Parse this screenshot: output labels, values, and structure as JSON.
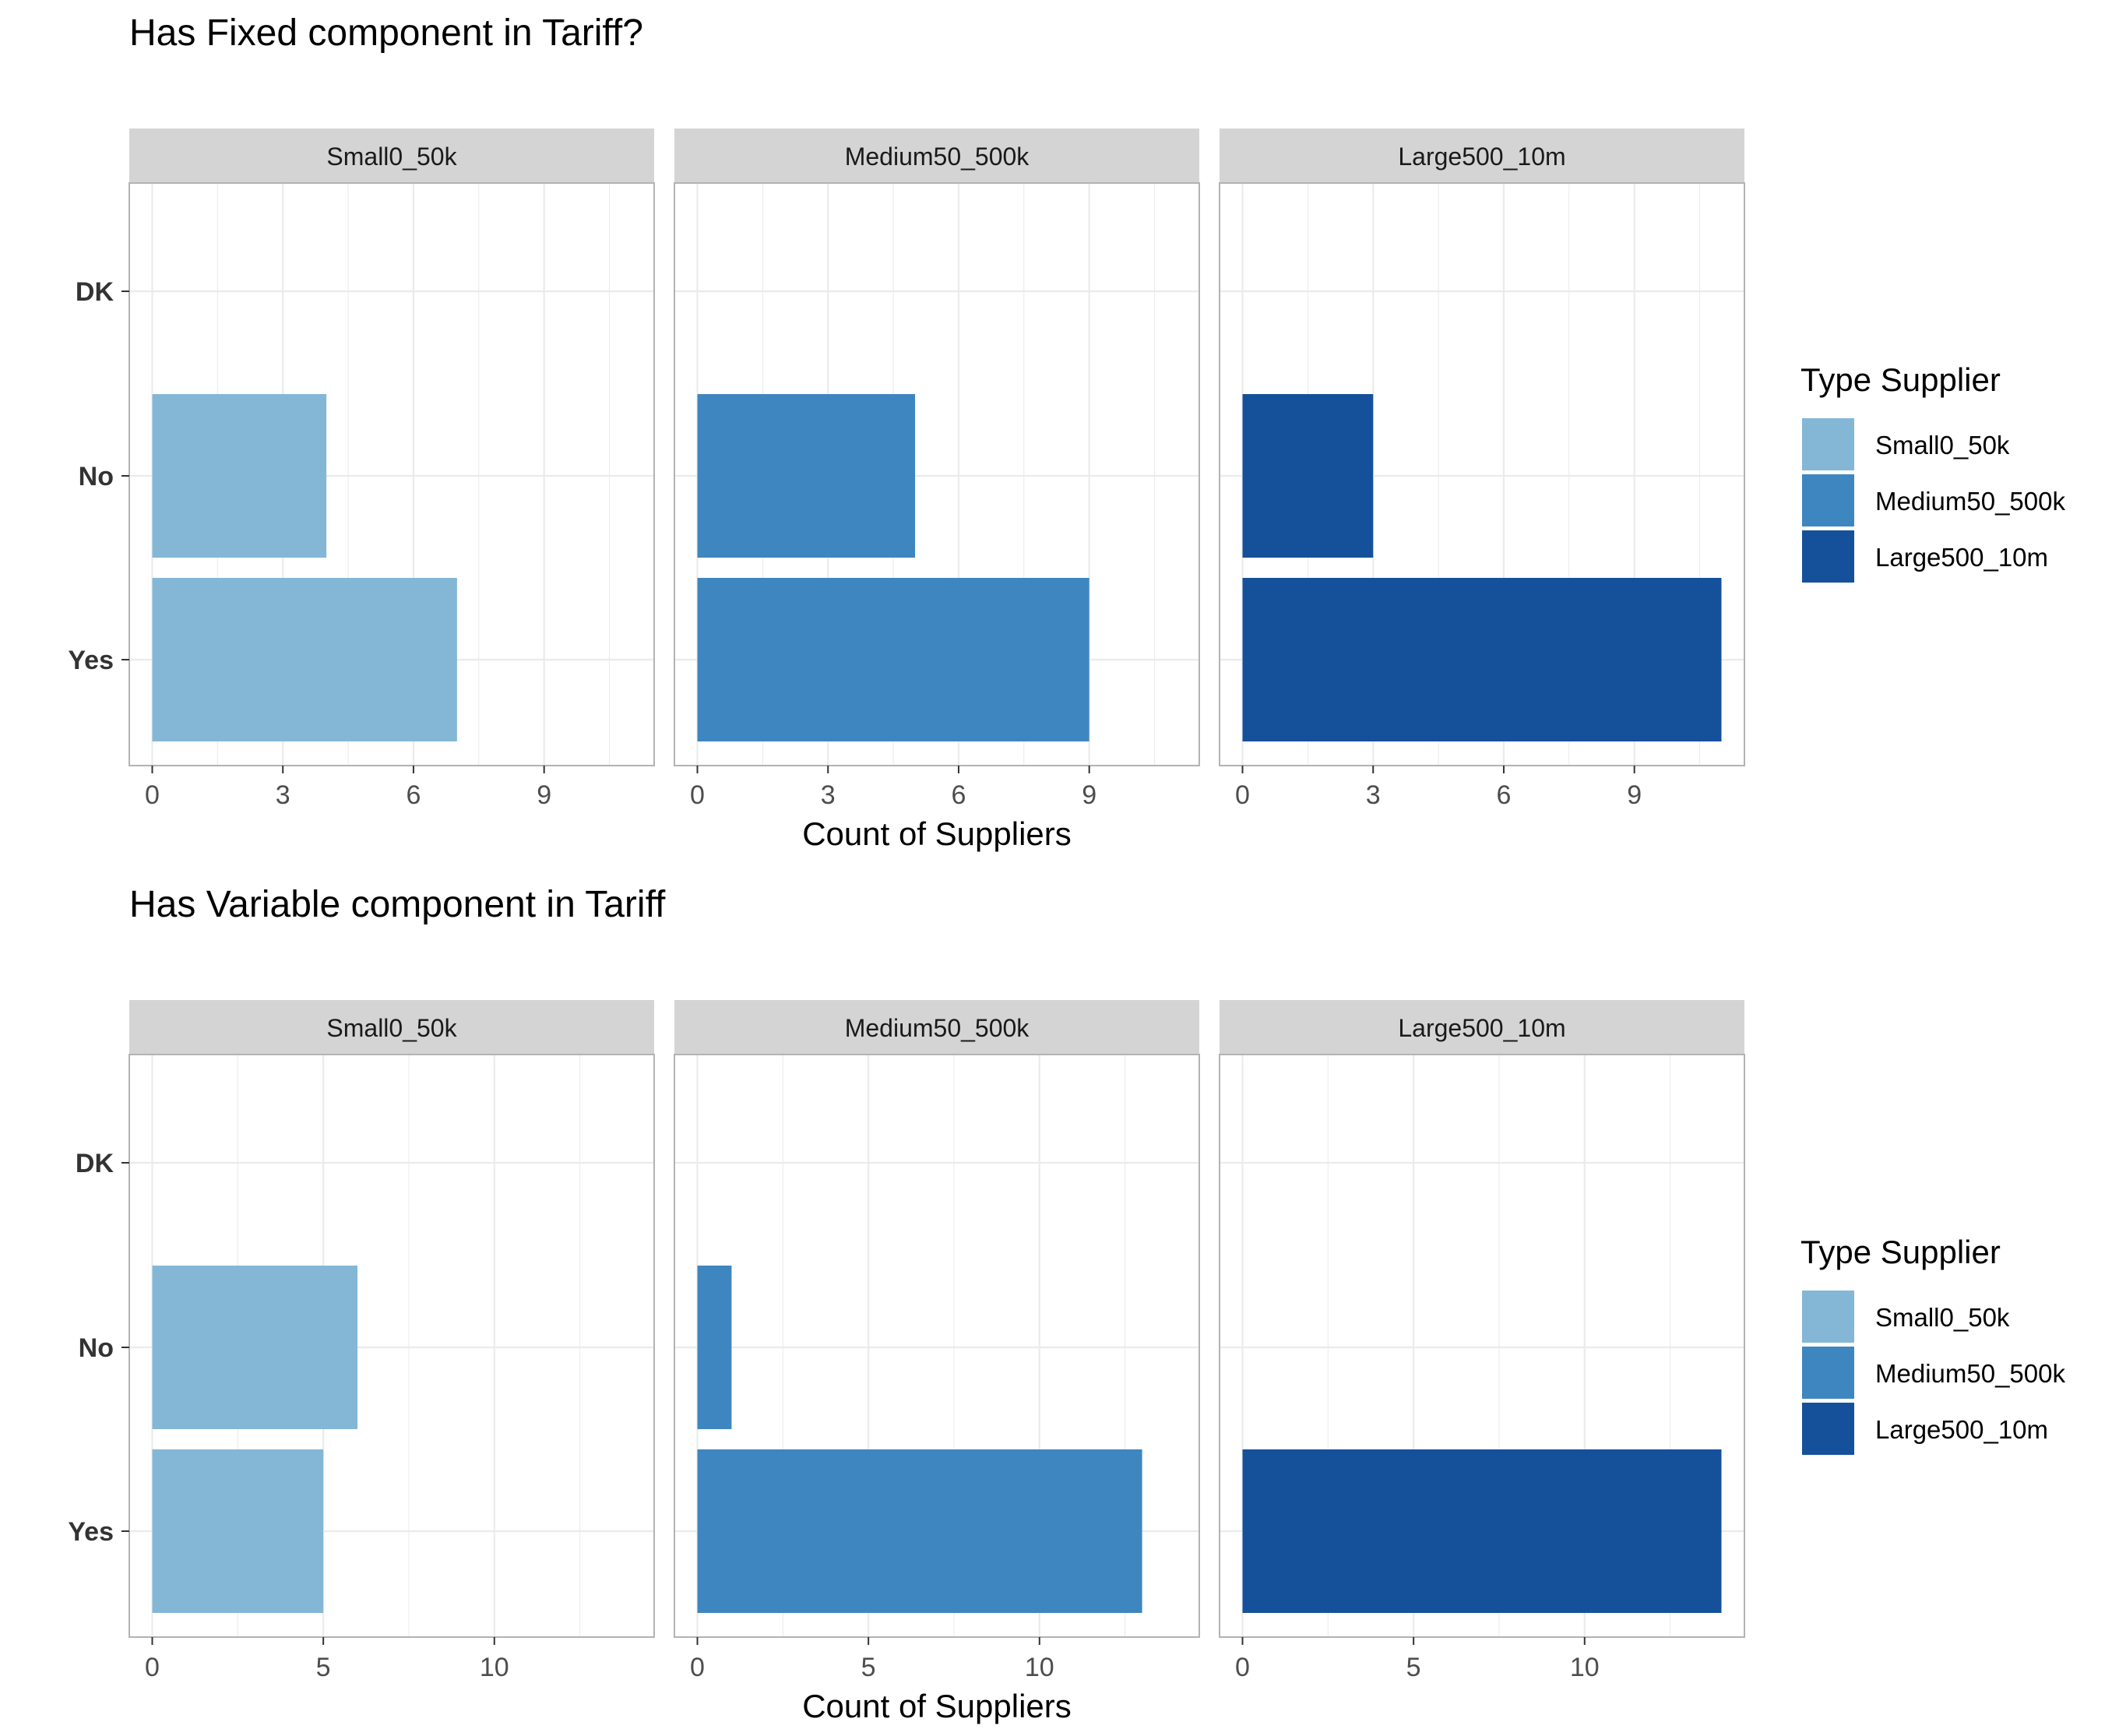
{
  "chart_data": [
    {
      "type": "bar",
      "orientation": "horizontal",
      "title": "Has Fixed component in Tariff?",
      "xlabel": "Count of Suppliers",
      "ylabel": "",
      "categories": [
        "DK",
        "No",
        "Yes"
      ],
      "xlim": [
        0,
        11
      ],
      "xticks": [
        "0",
        "3",
        "6",
        "9"
      ],
      "xtick_values": [
        0,
        3,
        6,
        9
      ],
      "grid": true,
      "facets": [
        {
          "label": "Small0_50k",
          "values": [
            0,
            4,
            7
          ]
        },
        {
          "label": "Medium50_500k",
          "values": [
            0,
            5,
            9
          ]
        },
        {
          "label": "Large500_10m",
          "values": [
            0,
            3,
            11
          ]
        }
      ],
      "legend": {
        "title": "Type Supplier",
        "position": "right",
        "items": [
          "Small0_50k",
          "Medium50_500k",
          "Large500_10m"
        ]
      }
    },
    {
      "type": "bar",
      "orientation": "horizontal",
      "title": "Has Variable component in Tariff",
      "xlabel": "Count of Suppliers",
      "ylabel": "",
      "categories": [
        "DK",
        "No",
        "Yes"
      ],
      "xlim": [
        0,
        14
      ],
      "xticks": [
        "0",
        "5",
        "10"
      ],
      "xtick_values": [
        0,
        5,
        10
      ],
      "grid": true,
      "facets": [
        {
          "label": "Small0_50k",
          "values": [
            0,
            6,
            5
          ]
        },
        {
          "label": "Medium50_500k",
          "values": [
            0,
            1,
            13
          ]
        },
        {
          "label": "Large500_10m",
          "values": [
            0,
            0,
            14
          ]
        }
      ],
      "legend": {
        "title": "Type Supplier",
        "position": "right",
        "items": [
          "Small0_50k",
          "Medium50_500k",
          "Large500_10m"
        ]
      }
    }
  ],
  "colors": {
    "Small0_50k": "#84b7d6",
    "Medium50_500k": "#3e86c0",
    "Large500_10m": "#15519b",
    "strip_bg": "#d4d4d4",
    "panel_border": "#b3b3b3",
    "grid": "#ebebeb"
  }
}
